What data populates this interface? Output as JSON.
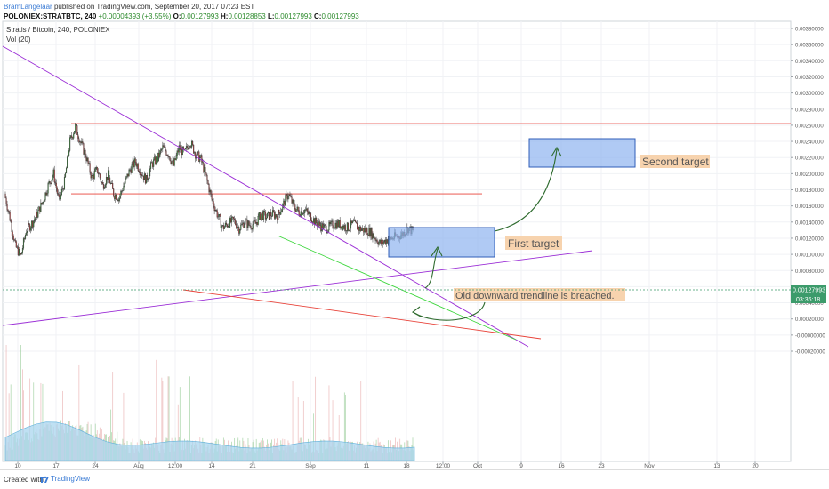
{
  "header": {
    "author": "BramLangelaar",
    "published": "published on TradingView.com, September 20, 2017 07:23 EST",
    "symbol_line": "POLONIEX:STRATBTC, 240",
    "change": "+0.00004393 (+3.55%)",
    "o_label": "O:",
    "o_val": "0.00127993",
    "h_label": "H:",
    "h_val": "0.00128853",
    "l_label": "L:",
    "l_val": "0.00127993",
    "c_label": "C:",
    "c_val": "0.00127993"
  },
  "footer": {
    "created_with": "Created with",
    "brand": "TradingView"
  },
  "chart_data": {
    "type": "candlestick",
    "title": "Stratis / Bitcoin, 240, POLONIEX",
    "volume_label": "Vol (20)",
    "y_ticks": [
      "0.00380000",
      "0.00360000",
      "0.00340000",
      "0.00320000",
      "0.00300000",
      "0.00280000",
      "0.00260000",
      "0.00240000",
      "0.00220000",
      "0.00200000",
      "0.00180000",
      "0.00160000",
      "0.00140000",
      "0.00120000",
      "0.00100000",
      "0.00080000",
      "0.00060000",
      "0.00040000",
      "0.00020000",
      "-0.00000000",
      "-0.00020000"
    ],
    "y_range": [
      -0.00028,
      0.00385
    ],
    "x_ticks": [
      "10",
      "17",
      "24",
      "Aug",
      "12:00",
      "14",
      "21",
      "Sep",
      "11",
      "18",
      "12:00",
      "Oct",
      "9",
      "16",
      "23",
      "Nov",
      "13",
      "20"
    ],
    "last_price": "0.00127993",
    "countdown": "03:36:18",
    "price_series": [
      [
        "07-07",
        0.00175
      ],
      [
        "07-08",
        0.00145
      ],
      [
        "07-09",
        0.0011
      ],
      [
        "07-10",
        0.00098
      ],
      [
        "07-11",
        0.0013
      ],
      [
        "07-12",
        0.00138
      ],
      [
        "07-13",
        0.0015
      ],
      [
        "07-14",
        0.00165
      ],
      [
        "07-15",
        0.00185
      ],
      [
        "07-16",
        0.002
      ],
      [
        "07-17",
        0.00165
      ],
      [
        "07-18",
        0.0019
      ],
      [
        "07-19",
        0.0024
      ],
      [
        "07-20",
        0.00258
      ],
      [
        "07-21",
        0.00238
      ],
      [
        "07-22",
        0.0022
      ],
      [
        "07-23",
        0.00195
      ],
      [
        "07-24",
        0.00205
      ],
      [
        "07-25",
        0.00185
      ],
      [
        "07-26",
        0.00198
      ],
      [
        "07-27",
        0.00175
      ],
      [
        "07-28",
        0.0017
      ],
      [
        "07-29",
        0.00188
      ],
      [
        "07-30",
        0.00205
      ],
      [
        "07-31",
        0.00215
      ],
      [
        "08-01",
        0.00202
      ],
      [
        "08-02",
        0.00192
      ],
      [
        "08-03",
        0.00212
      ],
      [
        "08-04",
        0.00218
      ],
      [
        "08-05",
        0.00232
      ],
      [
        "08-06",
        0.00225
      ],
      [
        "08-07",
        0.0021
      ],
      [
        "08-08",
        0.00232
      ],
      [
        "08-09",
        0.00225
      ],
      [
        "08-10",
        0.0024
      ],
      [
        "08-11",
        0.00225
      ],
      [
        "08-12",
        0.00218
      ],
      [
        "08-13",
        0.00195
      ],
      [
        "08-14",
        0.00168
      ],
      [
        "08-15",
        0.0015
      ],
      [
        "08-16",
        0.00133
      ],
      [
        "08-17",
        0.00138
      ],
      [
        "08-18",
        0.00142
      ],
      [
        "08-19",
        0.00132
      ],
      [
        "08-20",
        0.0014
      ],
      [
        "08-21",
        0.00136
      ],
      [
        "08-22",
        0.00138
      ],
      [
        "08-23",
        0.0015
      ],
      [
        "08-24",
        0.00146
      ],
      [
        "08-25",
        0.0015
      ],
      [
        "08-26",
        0.00148
      ],
      [
        "08-27",
        0.0016
      ],
      [
        "08-28",
        0.00175
      ],
      [
        "08-29",
        0.0016
      ],
      [
        "08-30",
        0.00152
      ],
      [
        "08-31",
        0.00155
      ],
      [
        "09-01",
        0.00148
      ],
      [
        "09-02",
        0.0014
      ],
      [
        "09-03",
        0.00135
      ],
      [
        "09-04",
        0.00132
      ],
      [
        "09-05",
        0.00136
      ],
      [
        "09-06",
        0.00138
      ],
      [
        "09-07",
        0.00135
      ],
      [
        "09-08",
        0.00133
      ],
      [
        "09-09",
        0.00138
      ],
      [
        "09-10",
        0.00132
      ],
      [
        "09-11",
        0.0013
      ],
      [
        "09-12",
        0.00128
      ],
      [
        "09-13",
        0.0012
      ],
      [
        "09-14",
        0.00113
      ],
      [
        "09-15",
        0.00118
      ],
      [
        "09-16",
        0.0012
      ],
      [
        "09-17",
        0.00122
      ],
      [
        "09-18",
        0.00125
      ],
      [
        "09-19",
        0.00132
      ],
      [
        "09-20",
        0.00128
      ]
    ],
    "horizontal_lines": [
      0.00262,
      0.00175
    ],
    "annotations": [
      {
        "text": "Second target"
      },
      {
        "text": "First target"
      },
      {
        "text": "Old downward trendline is breached."
      }
    ]
  }
}
